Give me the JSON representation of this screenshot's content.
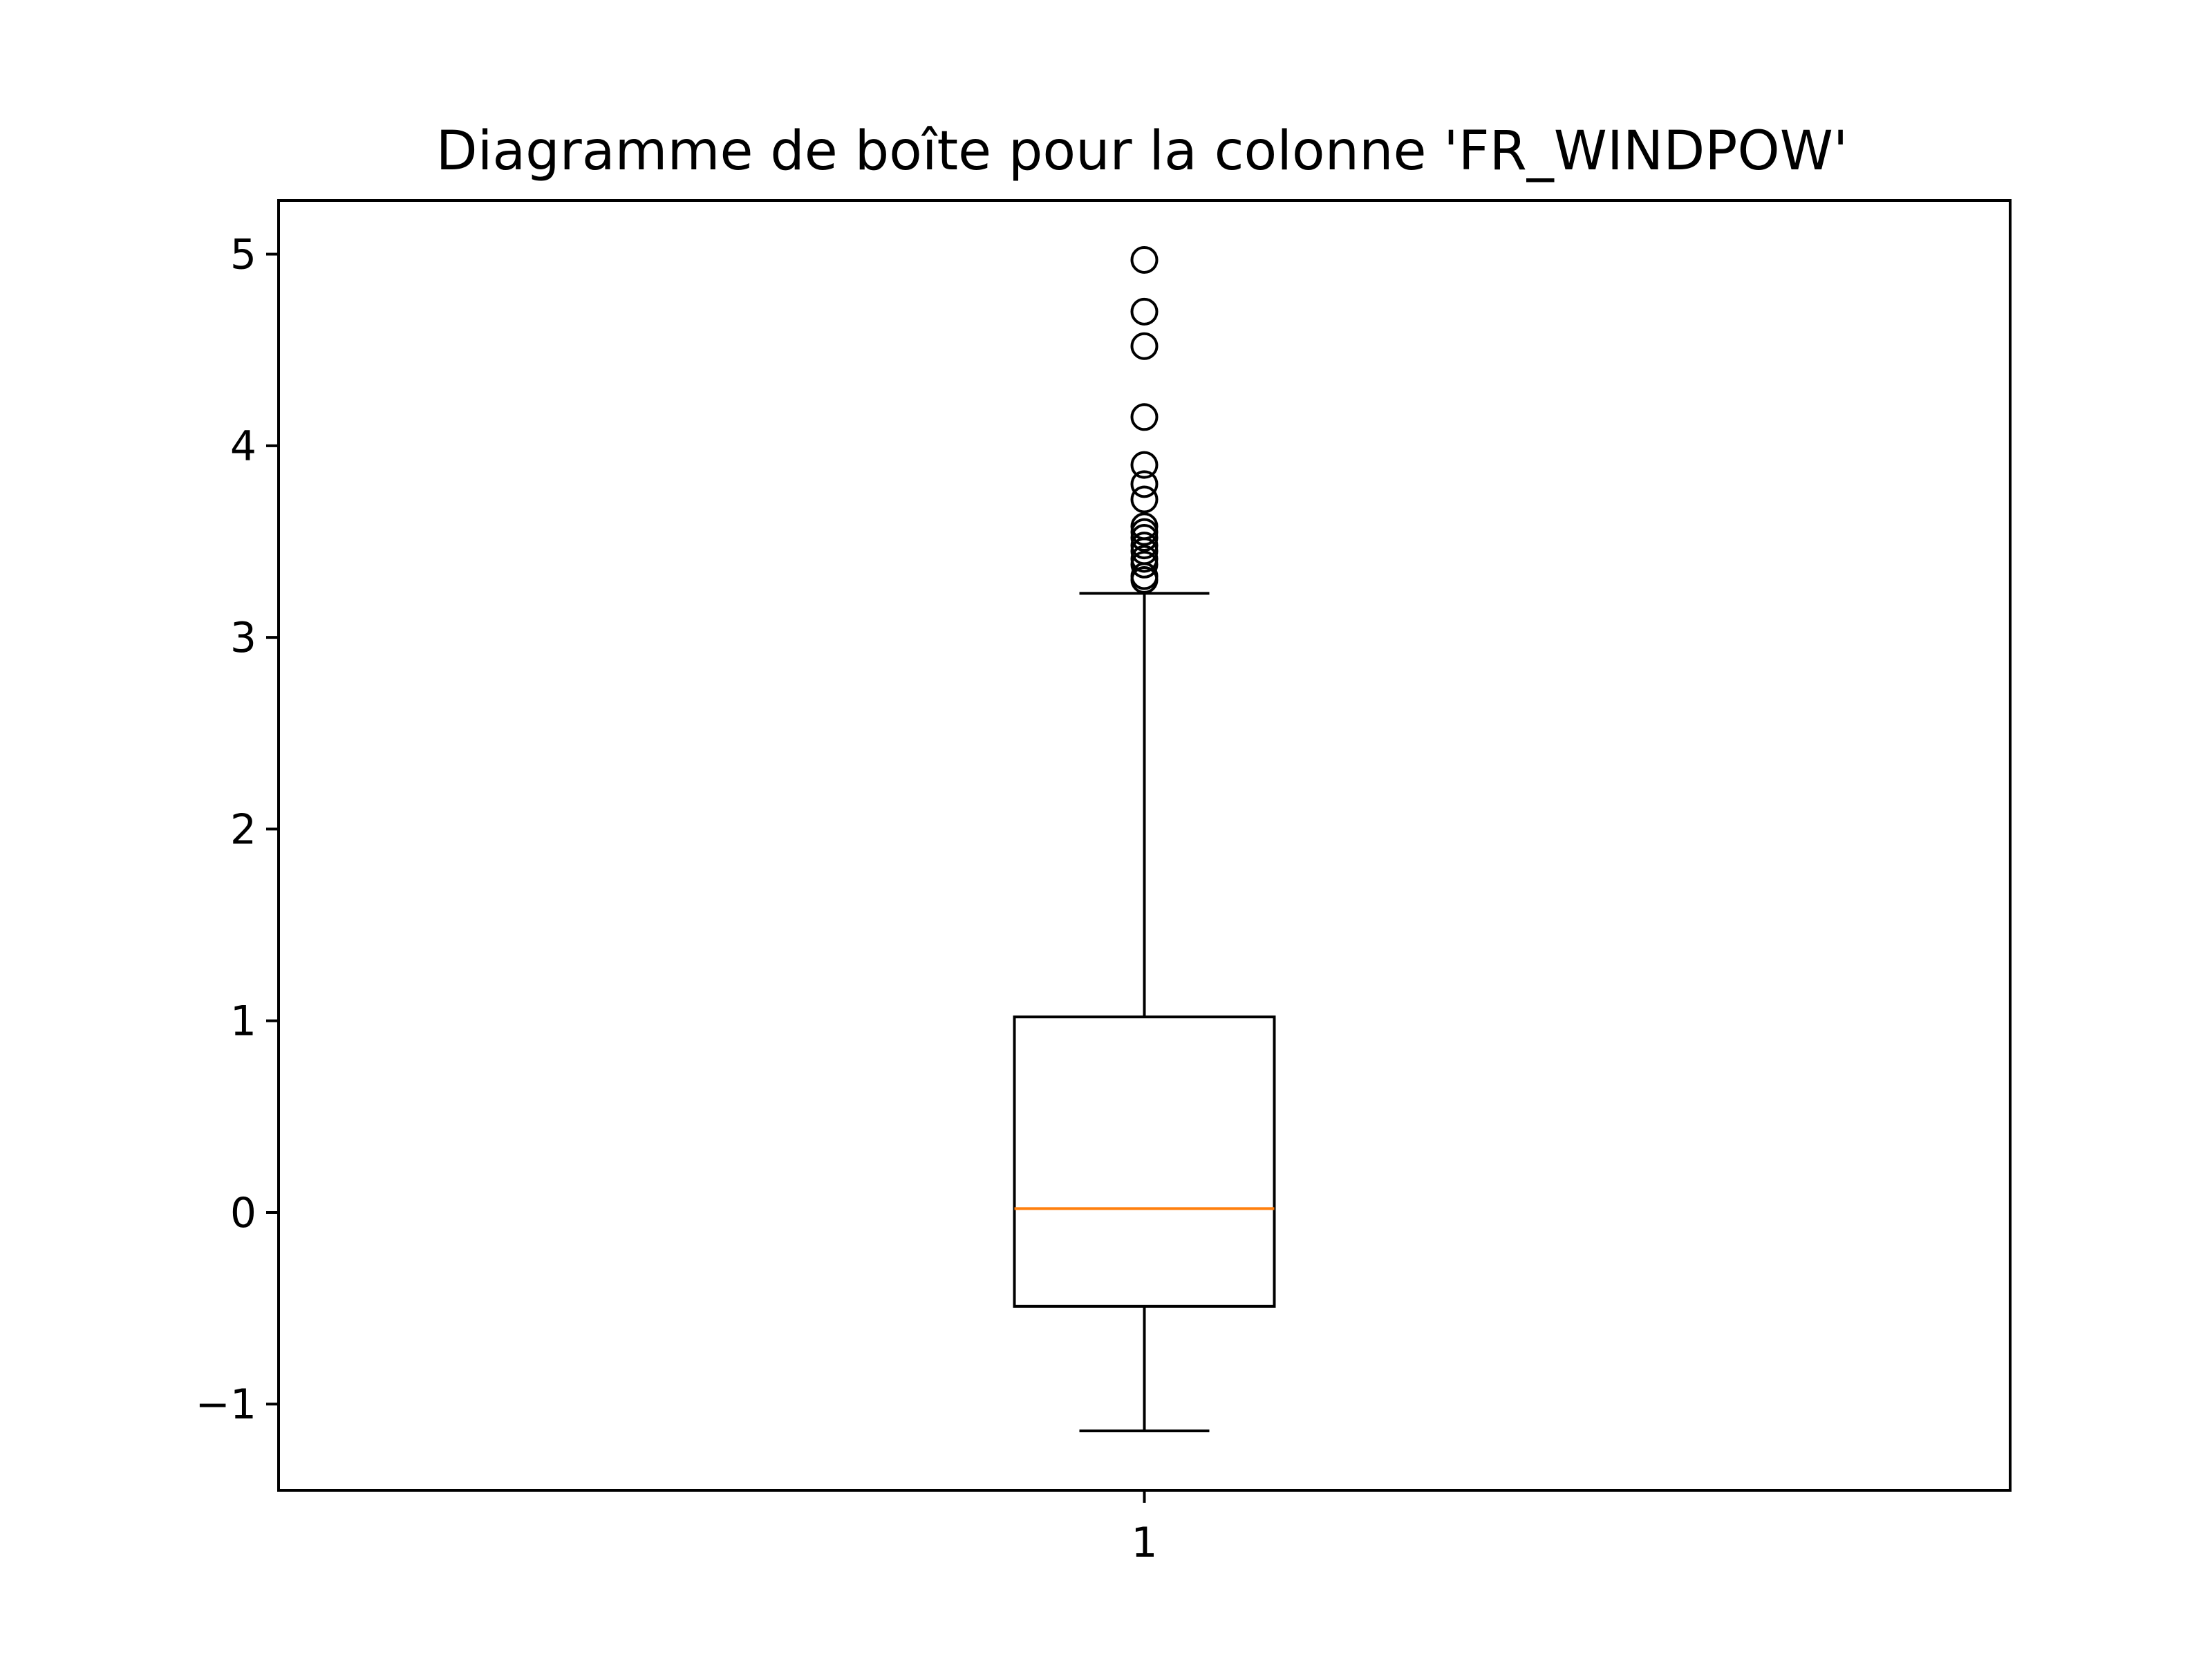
{
  "chart_data": {
    "type": "box",
    "title": "Diagramme de boîte pour la colonne 'FR_WINDPOW'",
    "xlabel": "",
    "ylabel": "",
    "categories": [
      "1"
    ],
    "ylim": [
      -1.45,
      5.28
    ],
    "yticks": [
      -1,
      0,
      1,
      2,
      3,
      4,
      5
    ],
    "ytick_labels": [
      "−1",
      "0",
      "1",
      "2",
      "3",
      "4",
      "5"
    ],
    "grid": false,
    "legend": "none",
    "boxes": [
      {
        "category": "1",
        "whisker_low": -1.14,
        "q1": -0.49,
        "median": 0.02,
        "q3": 1.02,
        "whisker_high": 3.23,
        "outliers": [
          3.3,
          3.32,
          3.38,
          3.41,
          3.45,
          3.48,
          3.52,
          3.55,
          3.58,
          3.72,
          3.8,
          3.9,
          4.15,
          4.52,
          4.7,
          4.97
        ]
      }
    ],
    "colors": {
      "box": "#000000",
      "median": "#ff7f0e",
      "outlier": "#000000",
      "background": "#ffffff"
    }
  }
}
